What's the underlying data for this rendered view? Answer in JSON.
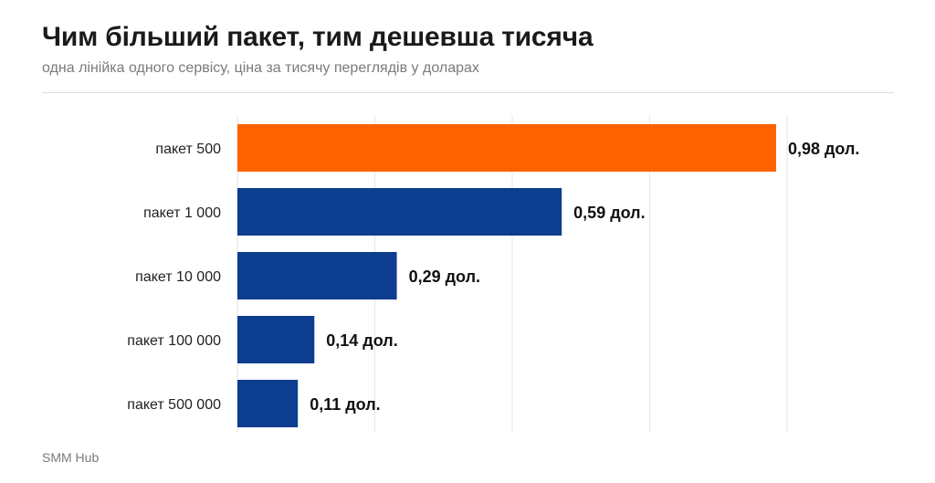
{
  "header": {
    "title": "Чим більший пакет, тим дешевша тисяча",
    "subtitle": "одна лінійка одного сервісу, ціна за тисячу переглядів у доларах"
  },
  "footer": {
    "source": "SMM Hub"
  },
  "colors": {
    "highlight": "#ff6200",
    "bar": "#0d3d8e",
    "grid": "#e6e6e6"
  },
  "chart_data": {
    "type": "bar",
    "orientation": "horizontal",
    "categories": [
      "пакет 500",
      "пакет 1 000",
      "пакет 10 000",
      "пакет 100 000",
      "пакет 500 000"
    ],
    "values": [
      0.98,
      0.59,
      0.29,
      0.14,
      0.11
    ],
    "value_labels": [
      "0,98 дол.",
      "0,59 дол.",
      "0,29 дол.",
      "0,14 дол.",
      "0,11 дол."
    ],
    "highlight_index": 0,
    "xlim": [
      0,
      1
    ],
    "grid": true,
    "legend": "none"
  }
}
